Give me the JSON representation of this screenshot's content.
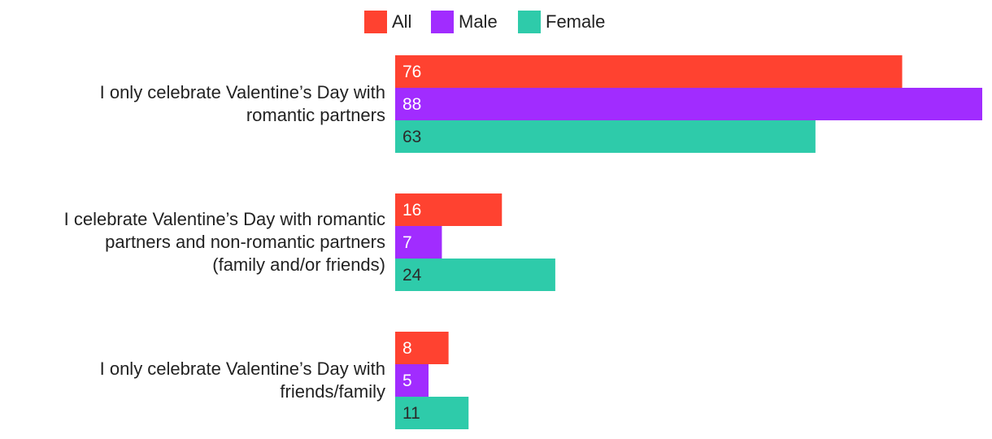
{
  "chart_data": {
    "type": "bar",
    "orientation": "horizontal",
    "title": "",
    "xlabel": "",
    "ylabel": "",
    "xlim": [
      0,
      88
    ],
    "grid": false,
    "legend_position": "top-center",
    "categories": [
      [
        "I only celebrate Valentine’s Day with",
        "romantic partners"
      ],
      [
        "I celebrate Valentine’s Day with romantic",
        "partners and non-romantic partners",
        "(family and/or friends)"
      ],
      [
        "I only celebrate Valentine’s Day with",
        "friends/family"
      ]
    ],
    "series": [
      {
        "name": "All",
        "color": "#ff4230",
        "label_color": "#ffffff",
        "values": [
          76,
          16,
          8
        ]
      },
      {
        "name": "Male",
        "color": "#a12cff",
        "label_color": "#ffffff",
        "values": [
          88,
          7,
          5
        ]
      },
      {
        "name": "Female",
        "color": "#2ecbaa",
        "label_color": "#2b2b2b",
        "values": [
          63,
          24,
          11
        ]
      }
    ]
  }
}
